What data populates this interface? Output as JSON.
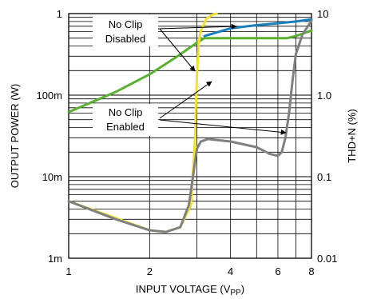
{
  "chart_data": {
    "type": "line",
    "xlabel": "INPUT VOLTAGE (V",
    "xlabel_sub": "PP",
    "xlabel_close": ")",
    "ylabel_left": "OUTPUT POWER (W)",
    "ylabel_right": "THD+N (%)",
    "x_scale": "log",
    "y_left_scale": "log",
    "y_right_scale": "log",
    "xlim": [
      1,
      8
    ],
    "ylim_left": [
      0.001,
      1
    ],
    "ylim_right": [
      0.01,
      10
    ],
    "x_ticks": [
      {
        "v": 1,
        "label": "1"
      },
      {
        "v": 2,
        "label": "2"
      },
      {
        "v": 4,
        "label": "4"
      },
      {
        "v": 6,
        "label": "6"
      },
      {
        "v": 8,
        "label": "8"
      }
    ],
    "y_left_ticks": [
      {
        "v": 1,
        "label": "1"
      },
      {
        "v": 0.1,
        "label": "100m"
      },
      {
        "v": 0.01,
        "label": "10m"
      },
      {
        "v": 0.001,
        "label": "1m"
      }
    ],
    "y_right_ticks": [
      {
        "v": 10,
        "label": "10"
      },
      {
        "v": 1,
        "label": "1.0"
      },
      {
        "v": 0.1,
        "label": "0.1"
      },
      {
        "v": 0.01,
        "label": "0.01"
      }
    ],
    "grid": true,
    "annotations": [
      {
        "lines": [
          "No Clip",
          "Disabled"
        ]
      },
      {
        "lines": [
          "No Clip",
          "Enabled"
        ]
      }
    ],
    "series": [
      {
        "axis": "left",
        "color": "#59b031",
        "x": [
          1,
          1.5,
          2,
          2.5,
          3.0,
          3.2,
          4,
          5,
          6,
          6.5,
          7.0,
          8
        ],
        "values": [
          0.062,
          0.11,
          0.18,
          0.29,
          0.44,
          0.5,
          0.5,
          0.5,
          0.5,
          0.5,
          0.53,
          0.62
        ]
      },
      {
        "axis": "left",
        "color": "#1a7fbf",
        "x": [
          3.2,
          4,
          5,
          6,
          7,
          8
        ],
        "values": [
          0.53,
          0.66,
          0.72,
          0.76,
          0.8,
          0.85
        ]
      },
      {
        "axis": "right",
        "color": "#f2e12a",
        "x": [
          1,
          1.5,
          2,
          2.3,
          2.6,
          2.85,
          2.95,
          3.0,
          3.05,
          3.1,
          3.25,
          3.4,
          3.55
        ],
        "values": [
          0.05,
          0.031,
          0.022,
          0.021,
          0.024,
          0.045,
          0.3,
          1.8,
          4.5,
          6.2,
          8.6,
          9.6,
          10
        ]
      },
      {
        "axis": "right",
        "color": "#808080",
        "x": [
          1,
          1.5,
          2,
          2.3,
          2.6,
          2.8,
          2.95,
          3.0,
          3.1,
          3.3,
          3.6,
          4,
          5,
          5.6,
          6.0,
          6.2,
          6.4,
          6.6,
          6.8,
          7.0,
          7.4,
          8
        ],
        "values": [
          0.05,
          0.03,
          0.022,
          0.021,
          0.024,
          0.045,
          0.15,
          0.22,
          0.27,
          0.29,
          0.28,
          0.27,
          0.23,
          0.19,
          0.18,
          0.2,
          0.3,
          0.6,
          1.5,
          3.2,
          5.5,
          8.2
        ]
      }
    ]
  }
}
